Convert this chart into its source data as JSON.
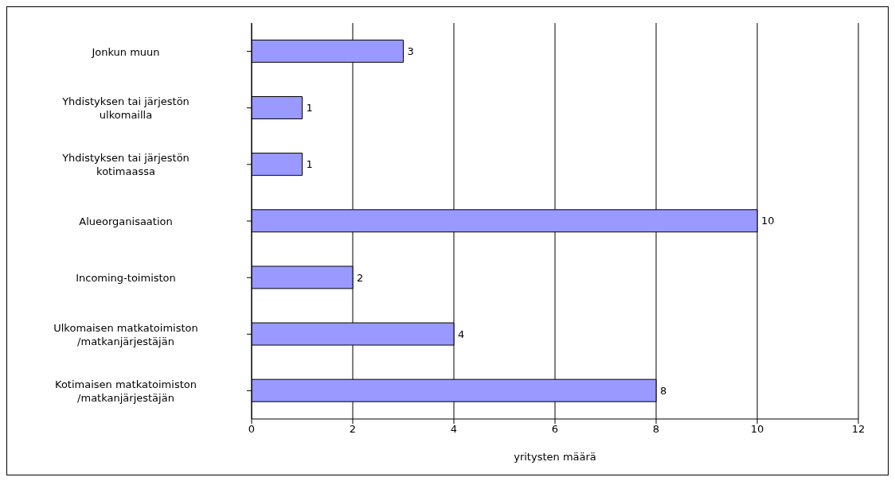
{
  "chart_data": {
    "type": "bar",
    "orientation": "horizontal",
    "xlabel": "yritysten määrä",
    "categories": [
      "Jonkun muun",
      "Yhdistyksen tai järjestön ulkomailla",
      "Yhdistyksen tai järjestön kotimaassa",
      "Alueorganisaation",
      "Incoming-toimiston",
      "Ulkomaisen matkatoimiston /matkanjärjestäjän",
      "Kotimaisen matkatoimiston /matkanjärjestäjän"
    ],
    "values": [
      3,
      1,
      1,
      10,
      2,
      4,
      8
    ],
    "color": "#9999ff",
    "data_labels": true,
    "xlim": [
      0,
      12
    ],
    "xticks": [
      0,
      2,
      4,
      6,
      8,
      10,
      12
    ],
    "grid": "x"
  }
}
